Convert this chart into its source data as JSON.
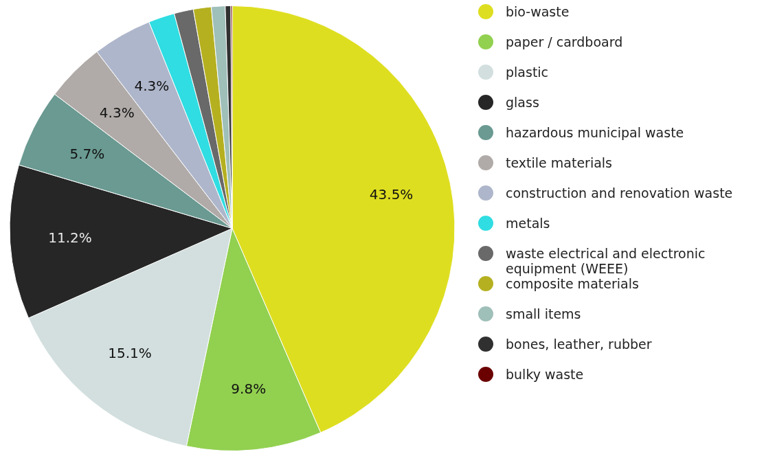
{
  "chart_data": {
    "type": "pie",
    "categories": [
      "bio-waste",
      "paper / cardboard",
      "plastic",
      "glass",
      "hazardous municipal waste",
      "textile materials",
      "construction and renovation waste",
      "metals",
      "waste electrical and electronic equipment (WEEE)",
      "composite materials",
      "small items",
      "bones, leather, rubber",
      "bulky waste"
    ],
    "values": [
      43.5,
      9.8,
      15.1,
      11.2,
      5.7,
      4.3,
      4.3,
      1.9,
      1.4,
      1.3,
      1.0,
      0.4,
      0.1
    ],
    "colors": [
      "#dede20",
      "#92d050",
      "#d2dfde",
      "#262626",
      "#6a9a92",
      "#b0aba8",
      "#aeb6cb",
      "#2fdde2",
      "#696969",
      "#b5b020",
      "#9fbfb9",
      "#303030",
      "#6b0000"
    ],
    "value_labels": [
      "43.5%",
      "9.8%",
      "15.1%",
      "11.2%",
      "5.7%",
      "4.3%",
      "4.3%",
      null,
      null,
      null,
      null,
      null,
      null
    ],
    "legend": "right"
  }
}
